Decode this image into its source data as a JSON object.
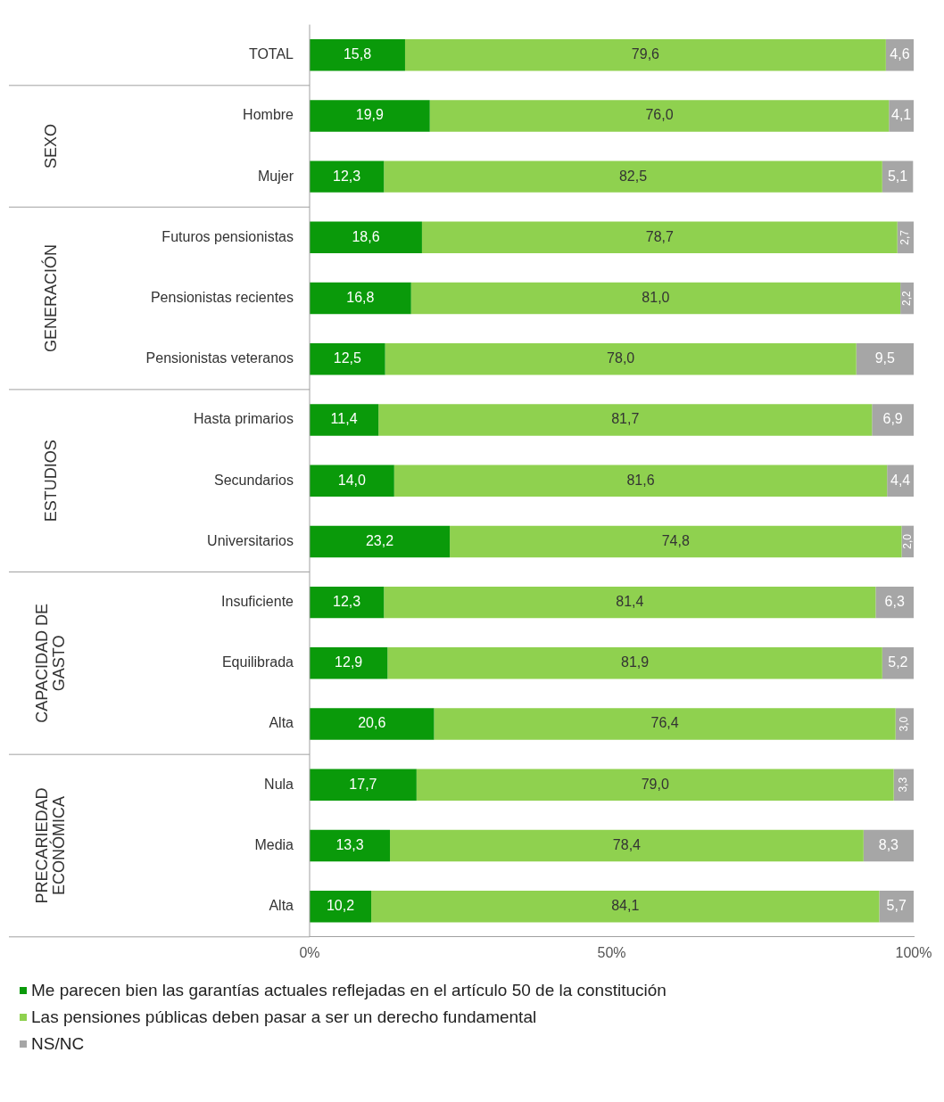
{
  "chart_data": {
    "type": "bar",
    "orientation": "horizontal",
    "stacked": true,
    "legend": "bottom",
    "grid": false,
    "categories": [
      "TOTAL",
      "Hombre",
      "Mujer",
      "Futuros pensionistas",
      "Pensionistas recientes",
      "Pensionistas veteranos",
      "Hasta primarios",
      "Secundarios",
      "Universitarios",
      "Insuficiente",
      "Equilibrada",
      "Alta",
      "Nula",
      "Media",
      "Alta"
    ],
    "series": [
      {
        "name": "Me parecen bien las garantías actuales reflejadas en el artículo 50 de la constitución",
        "color": "#0a9a0a",
        "values": [
          15.8,
          19.9,
          12.3,
          18.6,
          16.8,
          12.5,
          11.4,
          14.0,
          23.2,
          12.3,
          12.9,
          20.6,
          17.7,
          13.3,
          10.2
        ],
        "value_labels": [
          "15,8",
          "19,9",
          "12,3",
          "18,6",
          "16,8",
          "12,5",
          "11,4",
          "14,0",
          "23,2",
          "12,3",
          "12,9",
          "20,6",
          "17,7",
          "13,3",
          "10,2"
        ]
      },
      {
        "name": "Las pensiones públicas deben pasar a ser un derecho fundamental",
        "color": "#8fd14f",
        "values": [
          79.6,
          76.0,
          82.5,
          78.7,
          81.0,
          78.0,
          81.7,
          81.6,
          74.8,
          81.4,
          81.9,
          76.4,
          79.0,
          78.4,
          84.1
        ],
        "value_labels": [
          "79,6",
          "76,0",
          "82,5",
          "78,7",
          "81,0",
          "78,0",
          "81,7",
          "81,6",
          "74,8",
          "81,4",
          "81,9",
          "76,4",
          "79,0",
          "78,4",
          "84,1"
        ]
      },
      {
        "name": "NS/NC",
        "color": "#a6a6a6",
        "values": [
          4.6,
          4.1,
          5.1,
          2.7,
          2.2,
          9.5,
          6.9,
          4.4,
          2.0,
          6.3,
          5.2,
          3.0,
          3.3,
          8.3,
          5.7
        ],
        "value_labels": [
          "4,6",
          "4,1",
          "5,1",
          "2,7",
          "2,2",
          "9,5",
          "6,9",
          "4,4",
          "2,0",
          "6,3",
          "5,2",
          "3,0",
          "3,3",
          "8,3",
          "5,7"
        ]
      }
    ],
    "xlim": [
      0,
      100
    ],
    "xticks": [
      {
        "value": 0,
        "label": "0%"
      },
      {
        "value": 50,
        "label": "50%"
      },
      {
        "value": 100,
        "label": "100%"
      }
    ],
    "annotations": [
      "SEXO",
      "GENERACIÓN",
      "ESTUDIOS",
      "CAPACIDAD DE\nGASTO",
      "PRECARIEDAD\nECONÓMICA"
    ]
  }
}
